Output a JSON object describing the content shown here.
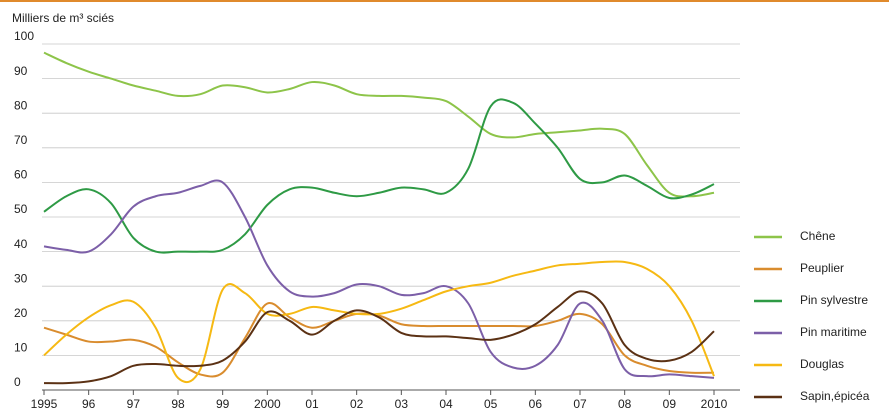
{
  "chart_data": {
    "type": "line",
    "title": "Milliers de m³ sciés",
    "x": [
      1995,
      1995.5,
      1996,
      1996.5,
      1997,
      1997.5,
      1998,
      1998.5,
      1999,
      1999.5,
      2000,
      2000.5,
      2001,
      2001.5,
      2002,
      2002.5,
      2003,
      2003.5,
      2004,
      2004.5,
      2005,
      2005.5,
      2006,
      2006.5,
      2007,
      2007.5,
      2008,
      2008.5,
      2009,
      2009.5,
      2010
    ],
    "series": [
      {
        "name": "Chêne",
        "color": "#8dc449",
        "values": [
          97.5,
          94.5,
          92,
          90,
          88,
          86.5,
          85,
          85.5,
          88,
          87.5,
          86,
          87,
          89,
          88,
          85.5,
          85,
          85,
          84.5,
          83.5,
          79,
          74,
          73,
          74,
          74.5,
          75,
          75.5,
          74,
          65,
          57,
          56,
          57
        ]
      },
      {
        "name": "Peuplier",
        "color": "#d98c2e",
        "values": [
          18,
          16,
          14,
          14,
          14.5,
          12.5,
          8,
          4.5,
          5,
          15,
          25,
          21,
          18,
          20,
          22,
          21.5,
          19,
          18.5,
          18.5,
          18.5,
          18.5,
          18.5,
          18.5,
          20,
          22,
          19,
          10,
          7,
          5.5,
          5,
          5
        ]
      },
      {
        "name": "Pin sylvestre",
        "color": "#2e9a45",
        "values": [
          51.5,
          56,
          58,
          54,
          44,
          40,
          40,
          40,
          40.5,
          45,
          53.5,
          58,
          58.5,
          57,
          56,
          57,
          58.5,
          58,
          57,
          64,
          82,
          83,
          77,
          70,
          61,
          60,
          62,
          59,
          55.5,
          56.5,
          59.5
        ]
      },
      {
        "name": "Pin maritime",
        "color": "#7c5fa8",
        "values": [
          41.5,
          40.5,
          40,
          45,
          53,
          56,
          57,
          59,
          60,
          50,
          36,
          28.5,
          27,
          28,
          30.5,
          30,
          27.5,
          28,
          30,
          25,
          11,
          6.5,
          7,
          13,
          25,
          20,
          6,
          4,
          4.5,
          4,
          3.5
        ]
      },
      {
        "name": "Douglas",
        "color": "#f6b913",
        "values": [
          10,
          16,
          21,
          24.5,
          25.5,
          18,
          3.5,
          6,
          29,
          28,
          22,
          22,
          24,
          23,
          22,
          22,
          23.5,
          26,
          28.5,
          30,
          31,
          33,
          34.5,
          36,
          36.5,
          37,
          37,
          35,
          30,
          20,
          4
        ]
      },
      {
        "name": "Sapin,épicéa",
        "color": "#5b3114",
        "values": [
          2,
          2,
          2.5,
          4,
          7,
          7.5,
          7,
          7,
          8.5,
          14,
          22.5,
          20,
          16,
          20,
          23,
          21,
          16.5,
          15.5,
          15.5,
          15,
          14.5,
          16,
          19,
          24,
          28.5,
          25,
          13,
          9,
          8.5,
          11,
          17
        ]
      }
    ],
    "xlim": [
      1995,
      2010
    ],
    "xticks": [
      1995,
      {
        "value": 1996,
        "label": "96"
      },
      {
        "value": 1997,
        "label": "97"
      },
      {
        "value": 1998,
        "label": "98"
      },
      {
        "value": 1999,
        "label": "99"
      },
      2000,
      {
        "value": 2001,
        "label": "01"
      },
      {
        "value": 2002,
        "label": "02"
      },
      {
        "value": 2003,
        "label": "03"
      },
      {
        "value": 2004,
        "label": "04"
      },
      {
        "value": 2005,
        "label": "05"
      },
      {
        "value": 2006,
        "label": "06"
      },
      {
        "value": 2007,
        "label": "07"
      },
      {
        "value": 2008,
        "label": "08"
      },
      {
        "value": 2009,
        "label": "09"
      },
      2010
    ],
    "ylim": [
      0,
      100
    ],
    "yticks": [
      0,
      10,
      20,
      30,
      40,
      50,
      60,
      70,
      80,
      90,
      100
    ],
    "grid": true,
    "legend": "right"
  }
}
